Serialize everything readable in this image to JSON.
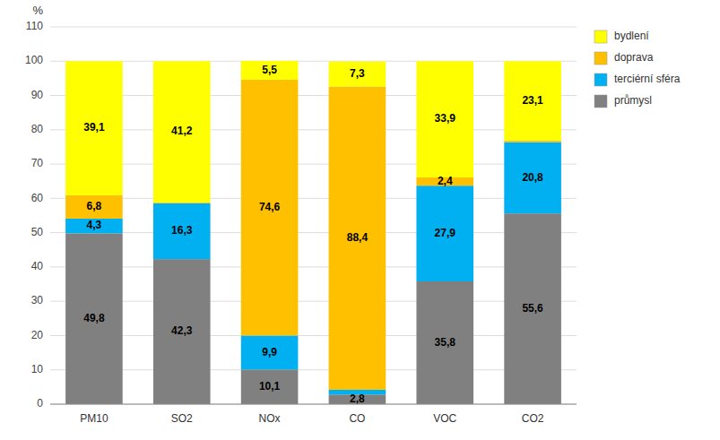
{
  "chart_data": {
    "type": "bar",
    "stacked": true,
    "ylabel": "%",
    "categories": [
      "PM10",
      "SO2",
      "NOx",
      "CO",
      "VOC",
      "CO2"
    ],
    "series": [
      {
        "name": "průmysl",
        "color": "#808080",
        "values": [
          49.8,
          42.3,
          10.1,
          2.8,
          35.8,
          55.6
        ],
        "value_labels": [
          "49,8",
          "42,3",
          "10,1",
          "2,8",
          "35,8",
          "55,6"
        ]
      },
      {
        "name": "terciérní sféra",
        "color": "#00B0F0",
        "values": [
          4.3,
          16.3,
          9.9,
          1.4,
          27.9,
          20.8
        ],
        "value_labels": [
          "4,3",
          "16,3",
          "9,9",
          null,
          "27,9",
          "20,8"
        ]
      },
      {
        "name": "doprava",
        "color": "#FFC000",
        "values": [
          6.8,
          0.2,
          74.6,
          88.4,
          2.4,
          0.5
        ],
        "value_labels": [
          "6,8",
          null,
          "74,6",
          "88,4",
          "2,4",
          null
        ]
      },
      {
        "name": "bydlení",
        "color": "#FFFF00",
        "values": [
          39.1,
          41.2,
          5.5,
          7.3,
          33.9,
          23.1
        ],
        "value_labels": [
          "39,1",
          "41,2",
          "5,5",
          "7,3",
          "33,9",
          "23,1"
        ]
      }
    ],
    "ylim": [
      0,
      110
    ],
    "yticks": [
      0,
      10,
      20,
      30,
      40,
      50,
      60,
      70,
      80,
      90,
      100,
      110
    ],
    "grid": true,
    "legend": "right",
    "data_labels": true
  }
}
